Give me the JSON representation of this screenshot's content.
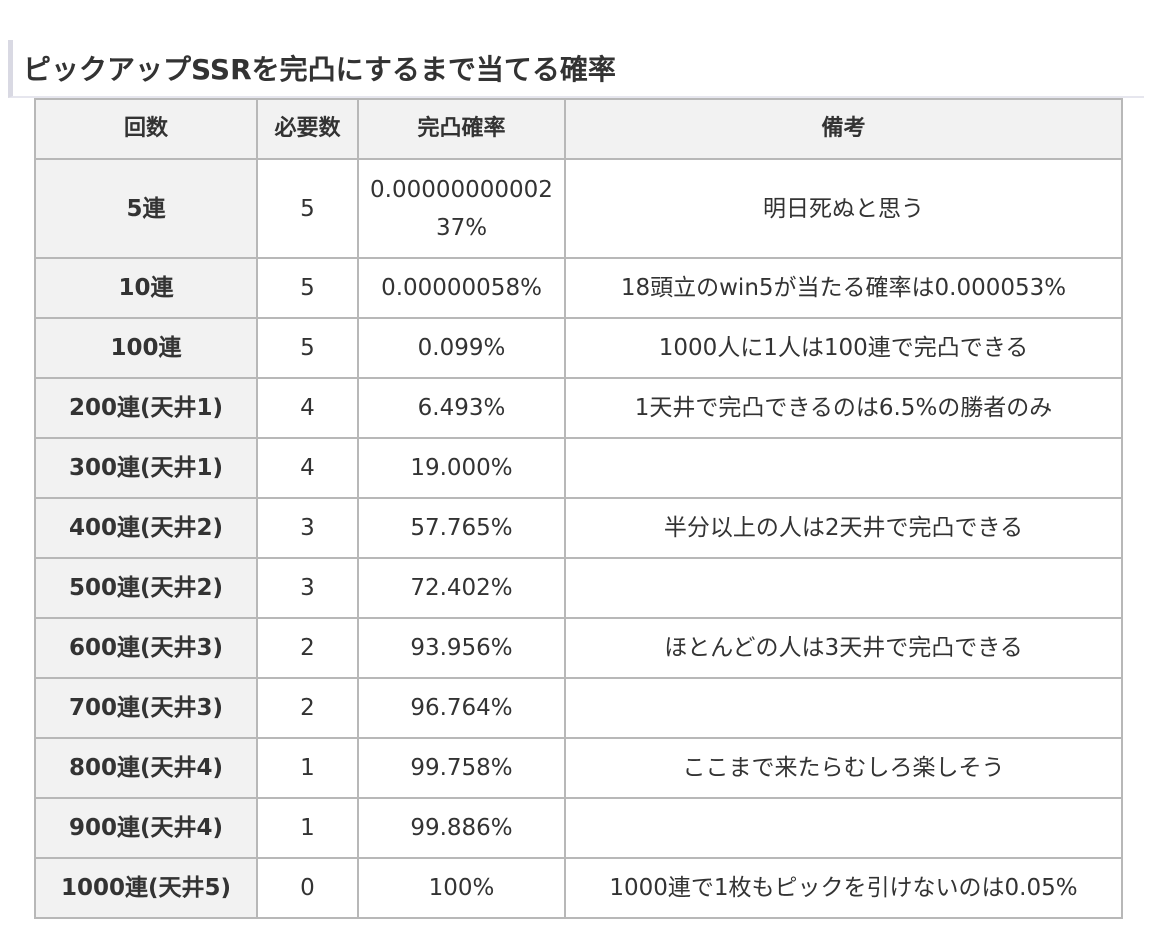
{
  "heading": "ピックアップSSRを完凸にするまで当てる確率",
  "table": {
    "headers": [
      "回数",
      "必要数",
      "完凸確率",
      "備考"
    ],
    "rows": [
      {
        "count": "5連",
        "needed": "5",
        "rate": "0.0000000000237%",
        "note": "明日死ぬと思う"
      },
      {
        "count": "10連",
        "needed": "5",
        "rate": "0.00000058%",
        "note": "18頭立のwin5が当たる確率は0.000053%"
      },
      {
        "count": "100連",
        "needed": "5",
        "rate": "0.099%",
        "note": "1000人に1人は100連で完凸できる"
      },
      {
        "count": "200連(天井1)",
        "needed": "4",
        "rate": "6.493%",
        "note": "1天井で完凸できるのは6.5%の勝者のみ"
      },
      {
        "count": "300連(天井1)",
        "needed": "4",
        "rate": "19.000%",
        "note": ""
      },
      {
        "count": "400連(天井2)",
        "needed": "3",
        "rate": "57.765%",
        "note": "半分以上の人は2天井で完凸できる"
      },
      {
        "count": "500連(天井2)",
        "needed": "3",
        "rate": "72.402%",
        "note": ""
      },
      {
        "count": "600連(天井3)",
        "needed": "2",
        "rate": "93.956%",
        "note": "ほとんどの人は3天井で完凸できる"
      },
      {
        "count": "700連(天井3)",
        "needed": "2",
        "rate": "96.764%",
        "note": ""
      },
      {
        "count": "800連(天井4)",
        "needed": "1",
        "rate": "99.758%",
        "note": "ここまで来たらむしろ楽しそう"
      },
      {
        "count": "900連(天井4)",
        "needed": "1",
        "rate": "99.886%",
        "note": ""
      },
      {
        "count": "1000連(天井5)",
        "needed": "0",
        "rate": "100%",
        "note": "1000連で1枚もピックを引けないのは0.05%"
      }
    ]
  }
}
